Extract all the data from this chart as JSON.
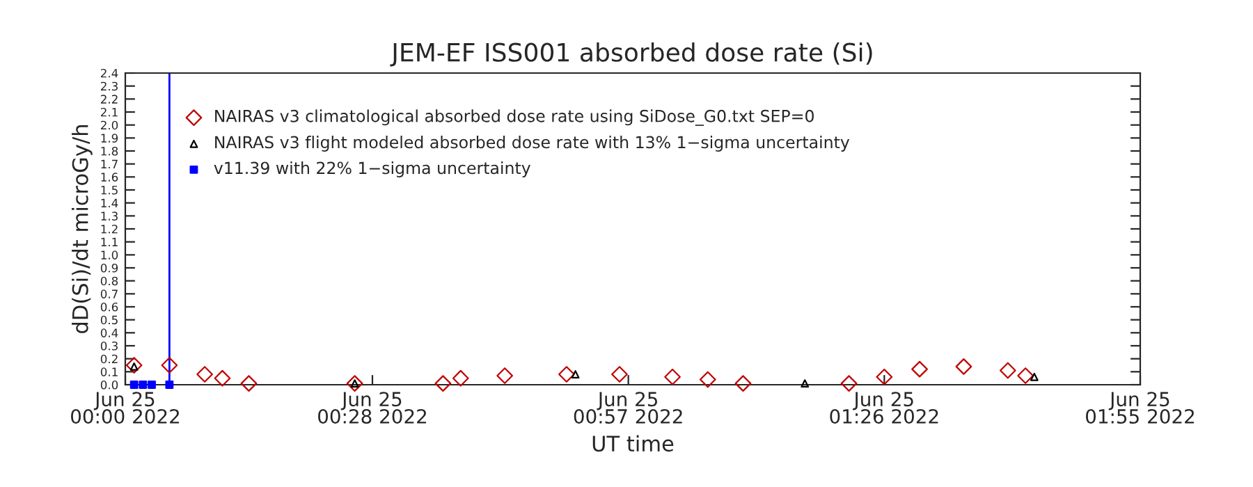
{
  "chart_data": {
    "type": "scatter",
    "title": "JEM-EF ISS001 absorbed dose rate (Si)",
    "xlabel": "UT time",
    "ylabel": "dD(Si)/dt microGy/h",
    "xlim": [
      "2022-06-25T00:00",
      "2022-06-25T01:55"
    ],
    "xticks": [
      {
        "value": "2022-06-25T00:00",
        "label": "Jun 25\n00:00 2022"
      },
      {
        "value": "2022-06-25T00:28",
        "label": "Jun 25\n00:28 2022"
      },
      {
        "value": "2022-06-25T00:57",
        "label": "Jun 25\n00:57 2022"
      },
      {
        "value": "2022-06-25T01:26",
        "label": "Jun 25\n01:26 2022"
      },
      {
        "value": "2022-06-25T01:55",
        "label": "Jun 25\n01:55 2022"
      }
    ],
    "ylim": [
      0,
      2.4
    ],
    "yticks": [
      {
        "value": 0,
        "label": "0.0"
      },
      {
        "value": 0.1,
        "label": "0.1"
      },
      {
        "value": 0.2,
        "label": "0.2"
      },
      {
        "value": 0.3,
        "label": "0.3"
      },
      {
        "value": 0.4,
        "label": "0.4"
      },
      {
        "value": 0.5,
        "label": "0.5"
      },
      {
        "value": 0.6,
        "label": "0.6"
      },
      {
        "value": 0.7,
        "label": "0.7"
      },
      {
        "value": 0.8,
        "label": "0.8"
      },
      {
        "value": 0.9,
        "label": "0.9"
      },
      {
        "value": 1.0,
        "label": "1.0"
      },
      {
        "value": 1.1,
        "label": "1.1"
      },
      {
        "value": 1.2,
        "label": "1.2"
      },
      {
        "value": 1.3,
        "label": "1.3"
      },
      {
        "value": 1.4,
        "label": "1.4"
      },
      {
        "value": 1.5,
        "label": "1.5"
      },
      {
        "value": 1.6,
        "label": "1.6"
      },
      {
        "value": 1.7,
        "label": "1.7"
      },
      {
        "value": 1.8,
        "label": "1.8"
      },
      {
        "value": 1.9,
        "label": "1.9"
      },
      {
        "value": 2.0,
        "label": "2.0"
      },
      {
        "value": 2.1,
        "label": "2.1"
      },
      {
        "value": 2.2,
        "label": "2.2"
      },
      {
        "value": 2.3,
        "label": "2.3"
      },
      {
        "value": 2.4,
        "label": "2.4"
      }
    ],
    "legend": "top left",
    "ref_lines": [
      {
        "axis": "x",
        "value": "2022-06-25T00:05",
        "color": "#0000ff"
      }
    ],
    "series": [
      {
        "name": "NAIRAS v3 climatological absorbed dose rate using SiDose_G0.txt SEP=0",
        "color": "#c00000",
        "marker": "diamond",
        "x": [
          "2022-06-25T00:01",
          "2022-06-25T00:05",
          "2022-06-25T00:09",
          "2022-06-25T00:11",
          "2022-06-25T00:14",
          "2022-06-25T00:26",
          "2022-06-25T00:36",
          "2022-06-25T00:38",
          "2022-06-25T00:43",
          "2022-06-25T00:50",
          "2022-06-25T00:56",
          "2022-06-25T01:02",
          "2022-06-25T01:06",
          "2022-06-25T01:10",
          "2022-06-25T01:22",
          "2022-06-25T01:26",
          "2022-06-25T01:30",
          "2022-06-25T01:35",
          "2022-06-25T01:40",
          "2022-06-25T01:42"
        ],
        "values": [
          0.15,
          0.15,
          0.08,
          0.05,
          0.01,
          0.01,
          0.01,
          0.05,
          0.07,
          0.08,
          0.08,
          0.06,
          0.04,
          0.01,
          0.01,
          0.06,
          0.12,
          0.14,
          0.11,
          0.07
        ]
      },
      {
        "name": "NAIRAS v3 flight modeled absorbed dose rate with 13% 1−sigma uncertainty",
        "color": "#000000",
        "marker": "triangle",
        "x": [
          "2022-06-25T00:01",
          "2022-06-25T00:26",
          "2022-06-25T00:51",
          "2022-06-25T01:17",
          "2022-06-25T01:43"
        ],
        "values": [
          0.14,
          0.01,
          0.08,
          0.01,
          0.06
        ]
      },
      {
        "name": "v11.39 with 22% 1−sigma uncertainty",
        "color": "#0000ff",
        "marker": "square",
        "x": [
          "2022-06-25T00:01",
          "2022-06-25T00:02",
          "2022-06-25T00:03",
          "2022-06-25T00:05"
        ],
        "values": [
          0,
          0,
          0,
          0
        ]
      }
    ]
  }
}
